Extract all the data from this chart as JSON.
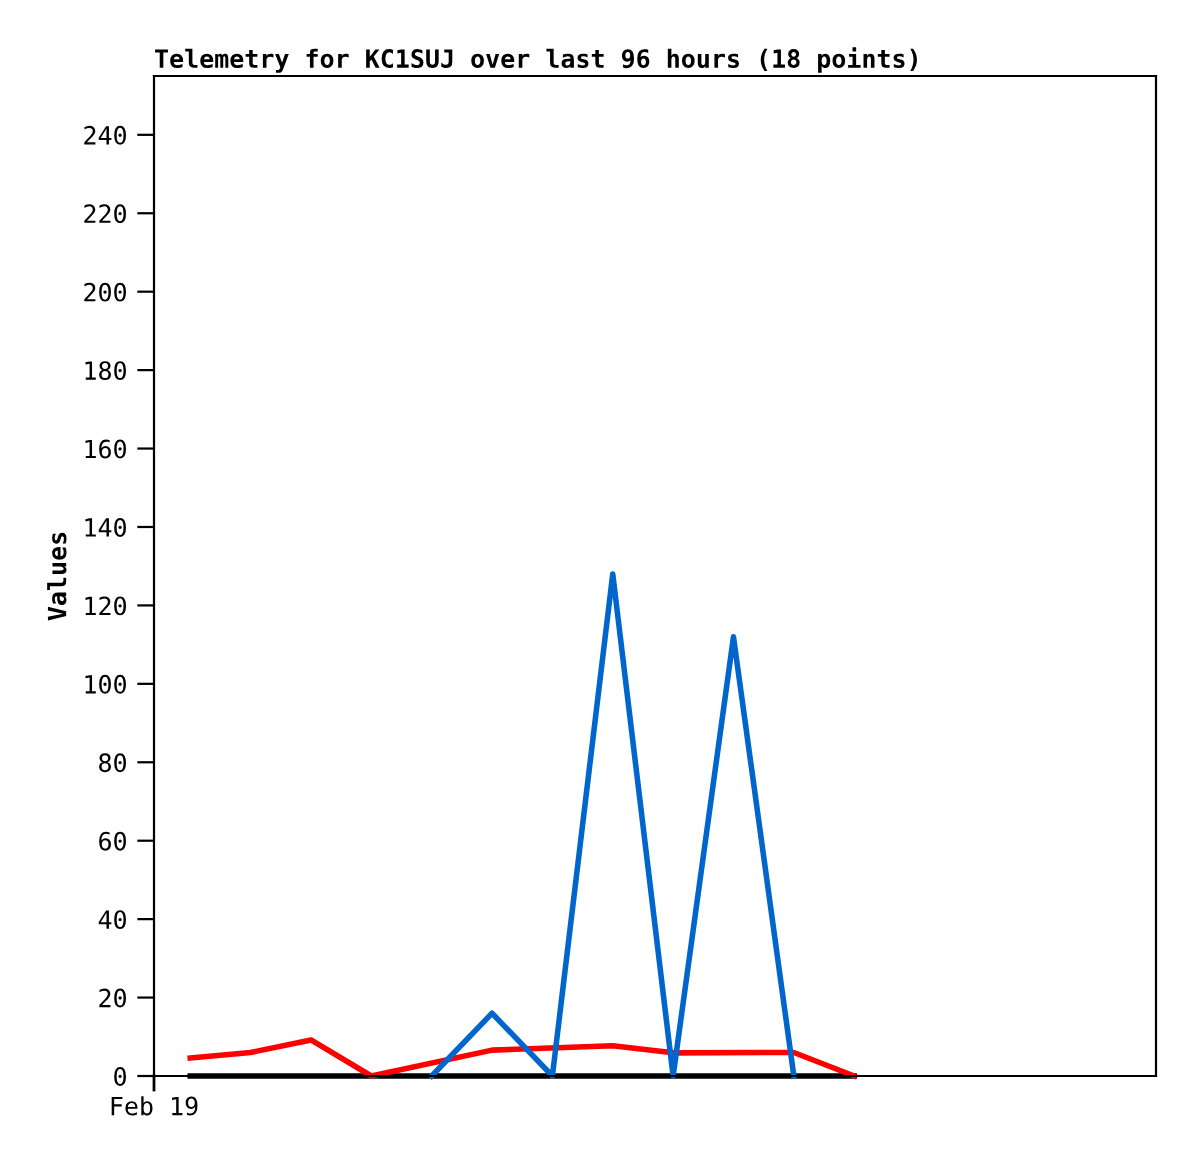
{
  "chart_data": {
    "type": "line",
    "title": "Telemetry for KC1SUJ over last 96 hours (18 points)",
    "ylabel": "Values",
    "annotations": [
      "Feb 19"
    ],
    "categories": [
      null,
      null,
      null,
      null,
      null,
      null,
      null,
      null,
      null,
      null,
      null,
      null
    ],
    "ylim": [
      0,
      255
    ],
    "yticks": [
      0,
      20,
      40,
      60,
      80,
      100,
      120,
      140,
      160,
      180,
      200,
      220,
      240
    ],
    "grid": false,
    "marker": "none",
    "line_style": "solid",
    "series": [
      {
        "color": "#000000",
        "values": [
          0,
          null,
          null,
          null,
          null,
          null,
          null,
          null,
          null,
          null,
          null,
          0
        ]
      },
      {
        "color": "#ff0000",
        "values": [
          4.6,
          6,
          9.2,
          0,
          null,
          6.6,
          null,
          7.7,
          5.9,
          null,
          6,
          0
        ]
      },
      {
        "color": "#0066cc",
        "values": [
          null,
          null,
          null,
          null,
          0,
          16,
          0,
          128,
          0,
          112,
          0,
          null
        ]
      }
    ]
  }
}
